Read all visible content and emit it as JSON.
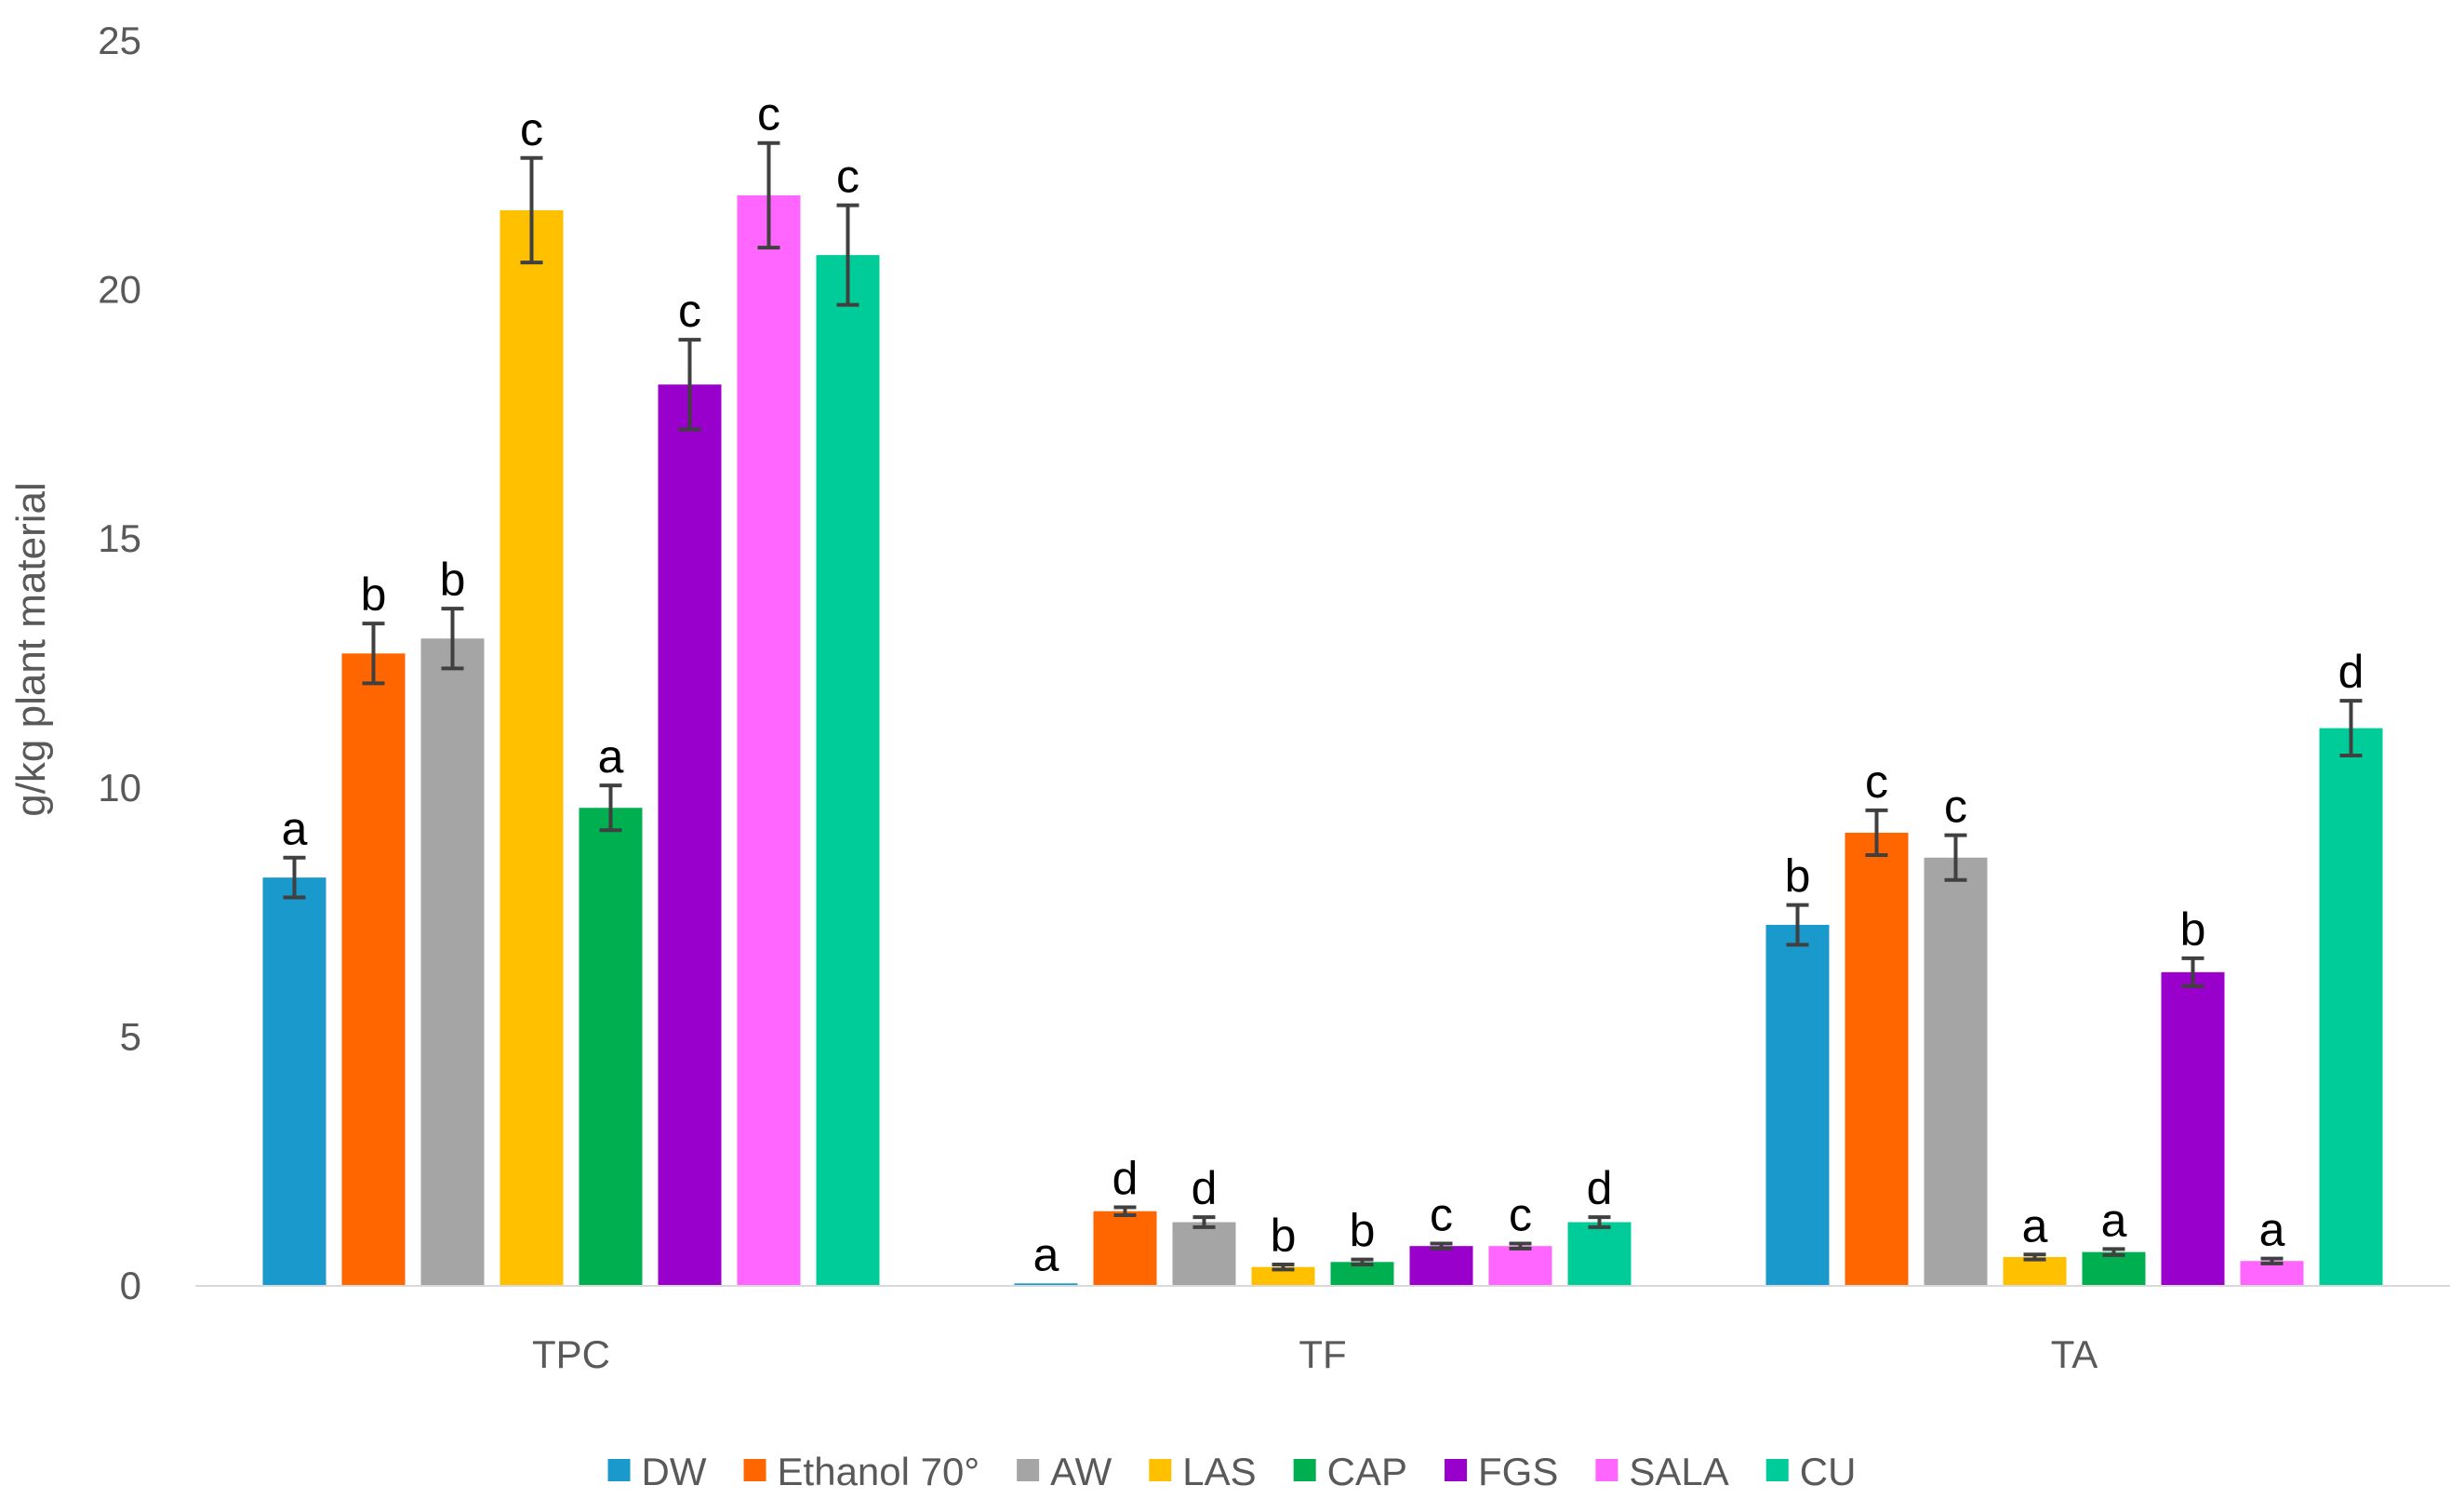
{
  "chart_data": {
    "type": "bar",
    "title": "",
    "xlabel": "",
    "ylabel": "g/kg plant material",
    "ylim": [
      0,
      25
    ],
    "yticks": [
      0,
      5,
      10,
      15,
      20,
      25
    ],
    "grid": false,
    "legend_position": "bottom",
    "categories": [
      "TPC",
      "TF",
      "TA"
    ],
    "series": [
      {
        "name": "DW",
        "color": "#1A99CC",
        "values": [
          8.2,
          0.05,
          7.25
        ],
        "errors": [
          0.4,
          0.0,
          0.4
        ],
        "sig": [
          "a",
          "a",
          "b"
        ]
      },
      {
        "name": "Ethanol 70°",
        "color": "#FF6600",
        "values": [
          12.7,
          1.5,
          9.1
        ],
        "errors": [
          0.6,
          0.08,
          0.45
        ],
        "sig": [
          "b",
          "d",
          "c"
        ]
      },
      {
        "name": "AW",
        "color": "#A5A5A5",
        "values": [
          13.0,
          1.28,
          8.6
        ],
        "errors": [
          0.6,
          0.1,
          0.45
        ],
        "sig": [
          "b",
          "d",
          "c"
        ]
      },
      {
        "name": "LAS",
        "color": "#FFC000",
        "values": [
          21.6,
          0.38,
          0.58
        ],
        "errors": [
          1.05,
          0.05,
          0.05
        ],
        "sig": [
          "c",
          "b",
          "a"
        ]
      },
      {
        "name": "CAP",
        "color": "#00B050",
        "values": [
          9.6,
          0.48,
          0.68
        ],
        "errors": [
          0.45,
          0.05,
          0.06
        ],
        "sig": [
          "a",
          "b",
          "a"
        ]
      },
      {
        "name": "FGS",
        "color": "#9900CC",
        "values": [
          18.1,
          0.8,
          6.3
        ],
        "errors": [
          0.9,
          0.05,
          0.28
        ],
        "sig": [
          "c",
          "c",
          "b"
        ]
      },
      {
        "name": "SALA",
        "color": "#FF66FF",
        "values": [
          21.9,
          0.8,
          0.5
        ],
        "errors": [
          1.05,
          0.05,
          0.05
        ],
        "sig": [
          "c",
          "c",
          "a"
        ]
      },
      {
        "name": "CU",
        "color": "#00CC99",
        "values": [
          20.7,
          1.28,
          11.2
        ],
        "errors": [
          1.0,
          0.1,
          0.55
        ],
        "sig": [
          "c",
          "d",
          "d"
        ]
      }
    ],
    "error_bar_color": "#404040",
    "axis_color": "#D9D9D9"
  }
}
